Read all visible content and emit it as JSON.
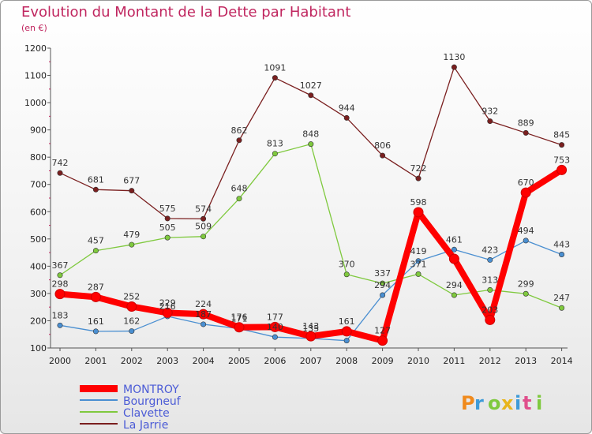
{
  "header": {
    "title": "Evolution du Montant de la Dette par Habitant",
    "subtitle": "(en €)"
  },
  "watermark": "Proxiti",
  "chart_data": {
    "type": "line",
    "title": "Evolution du Montant de la Dette par Habitant",
    "subtitle": "(en €)",
    "x": [
      "2000",
      "2001",
      "2002",
      "2003",
      "2004",
      "2005",
      "2006",
      "2007",
      "2008",
      "2009",
      "2010",
      "2011",
      "2012",
      "2013",
      "2014"
    ],
    "ylim": [
      100,
      1200
    ],
    "yticks": [
      100,
      200,
      300,
      400,
      500,
      600,
      700,
      800,
      900,
      1000,
      1100,
      1200
    ],
    "grid": false,
    "legend_position": "bottom-left",
    "series": [
      {
        "name": "MONTROY",
        "color": "#ff0000",
        "values": [
          298,
          287,
          252,
          229,
          224,
          176,
          177,
          143,
          161,
          127,
          598,
          427,
          203,
          670,
          753
        ],
        "show_labels": [
          true,
          true,
          true,
          true,
          true,
          true,
          true,
          true,
          true,
          true,
          true,
          false,
          true,
          true,
          true
        ]
      },
      {
        "name": "Bourgneuf",
        "color": "#4a8fd1",
        "values": [
          183,
          161,
          162,
          216,
          187,
          171,
          140,
          135,
          127,
          294,
          419,
          461,
          423,
          494,
          443
        ],
        "show_labels": [
          true,
          true,
          true,
          true,
          true,
          true,
          true,
          true,
          false,
          true,
          true,
          true,
          true,
          true,
          true
        ]
      },
      {
        "name": "Clavette",
        "color": "#7fc93e",
        "values": [
          367,
          457,
          479,
          505,
          509,
          648,
          813,
          848,
          370,
          337,
          371,
          294,
          313,
          299,
          247
        ],
        "show_labels": [
          true,
          true,
          true,
          true,
          true,
          true,
          true,
          true,
          true,
          true,
          true,
          true,
          true,
          true,
          true
        ]
      },
      {
        "name": "La Jarrie",
        "color": "#7a1f1f",
        "values": [
          742,
          681,
          677,
          575,
          574,
          862,
          1091,
          1027,
          944,
          806,
          722,
          1130,
          932,
          889,
          845
        ],
        "show_labels": [
          true,
          true,
          true,
          true,
          true,
          true,
          true,
          true,
          true,
          true,
          true,
          true,
          true,
          true,
          true
        ]
      }
    ]
  }
}
